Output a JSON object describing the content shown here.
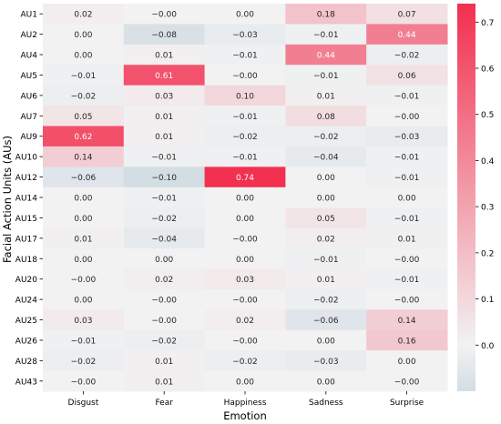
{
  "chart_data": {
    "type": "heatmap",
    "xlabel": "Emotion",
    "ylabel": "Facial Action Units (AUs)",
    "columns": [
      "Disgust",
      "Fear",
      "Happiness",
      "Sadness",
      "Surprise"
    ],
    "rows": [
      "AU1",
      "AU2",
      "AU4",
      "AU5",
      "AU6",
      "AU7",
      "AU9",
      "AU10",
      "AU12",
      "AU14",
      "AU15",
      "AU17",
      "AU18",
      "AU20",
      "AU24",
      "AU25",
      "AU26",
      "AU28",
      "AU43"
    ],
    "values": [
      [
        0.02,
        -0.0,
        0.0,
        0.18,
        0.07
      ],
      [
        0.0,
        -0.08,
        -0.03,
        -0.01,
        0.44
      ],
      [
        0.0,
        0.01,
        -0.01,
        0.44,
        -0.02
      ],
      [
        -0.01,
        0.61,
        -0.0,
        -0.01,
        0.06
      ],
      [
        -0.02,
        0.03,
        0.1,
        0.01,
        -0.01
      ],
      [
        0.05,
        0.01,
        -0.01,
        0.08,
        -0.0
      ],
      [
        0.62,
        0.01,
        -0.02,
        -0.02,
        -0.03
      ],
      [
        0.14,
        -0.01,
        -0.01,
        -0.04,
        -0.01
      ],
      [
        -0.06,
        -0.1,
        0.74,
        0.0,
        -0.01
      ],
      [
        0.0,
        -0.01,
        0.0,
        0.0,
        0.0
      ],
      [
        0.0,
        -0.02,
        0.0,
        0.05,
        -0.01
      ],
      [
        0.01,
        -0.04,
        -0.0,
        0.02,
        0.01
      ],
      [
        0.0,
        0.0,
        0.0,
        -0.01,
        -0.0
      ],
      [
        -0.0,
        0.02,
        0.03,
        0.01,
        -0.01
      ],
      [
        0.0,
        -0.0,
        -0.0,
        -0.02,
        -0.0
      ],
      [
        0.03,
        -0.0,
        0.02,
        -0.06,
        0.14
      ],
      [
        -0.01,
        -0.02,
        -0.0,
        0.0,
        0.16
      ],
      [
        -0.02,
        0.01,
        -0.02,
        -0.03,
        0.0
      ],
      [
        -0.0,
        0.01,
        0.0,
        0.0,
        -0.0
      ]
    ],
    "labels": [
      [
        "0.02",
        "−0.00",
        "0.00",
        "0.18",
        "0.07"
      ],
      [
        "0.00",
        "−0.08",
        "−0.03",
        "−0.01",
        "0.44"
      ],
      [
        "0.00",
        "0.01",
        "−0.01",
        "0.44",
        "−0.02"
      ],
      [
        "−0.01",
        "0.61",
        "−0.00",
        "−0.01",
        "0.06"
      ],
      [
        "−0.02",
        "0.03",
        "0.10",
        "0.01",
        "−0.01"
      ],
      [
        "0.05",
        "0.01",
        "−0.01",
        "0.08",
        "−0.00"
      ],
      [
        "0.62",
        "0.01",
        "−0.02",
        "−0.02",
        "−0.03"
      ],
      [
        "0.14",
        "−0.01",
        "−0.01",
        "−0.04",
        "−0.01"
      ],
      [
        "−0.06",
        "−0.10",
        "0.74",
        "0.00",
        "−0.01"
      ],
      [
        "0.00",
        "−0.01",
        "0.00",
        "0.00",
        "0.00"
      ],
      [
        "0.00",
        "−0.02",
        "0.00",
        "0.05",
        "−0.01"
      ],
      [
        "0.01",
        "−0.04",
        "−0.00",
        "0.02",
        "0.01"
      ],
      [
        "0.00",
        "0.00",
        "0.00",
        "−0.01",
        "−0.00"
      ],
      [
        "−0.00",
        "0.02",
        "0.03",
        "0.01",
        "−0.01"
      ],
      [
        "0.00",
        "−0.00",
        "−0.00",
        "−0.02",
        "−0.00"
      ],
      [
        "0.03",
        "−0.00",
        "0.02",
        "−0.06",
        "0.14"
      ],
      [
        "−0.01",
        "−0.02",
        "−0.00",
        "0.00",
        "0.16"
      ],
      [
        "−0.02",
        "0.01",
        "−0.02",
        "−0.03",
        "0.00"
      ],
      [
        "−0.00",
        "0.01",
        "0.00",
        "0.00",
        "−0.00"
      ]
    ],
    "colorbar": {
      "vmin": -0.1,
      "vmax": 0.74,
      "ticks": [
        0.0,
        0.1,
        0.2,
        0.3,
        0.4,
        0.5,
        0.6,
        0.7
      ],
      "tick_labels": [
        "0.0",
        "0.1",
        "0.2",
        "0.3",
        "0.4",
        "0.5",
        "0.6",
        "0.7"
      ],
      "colors": {
        "low": "#d3dde4",
        "mid": "#f2f2f2",
        "high": "#f2304f"
      }
    }
  }
}
